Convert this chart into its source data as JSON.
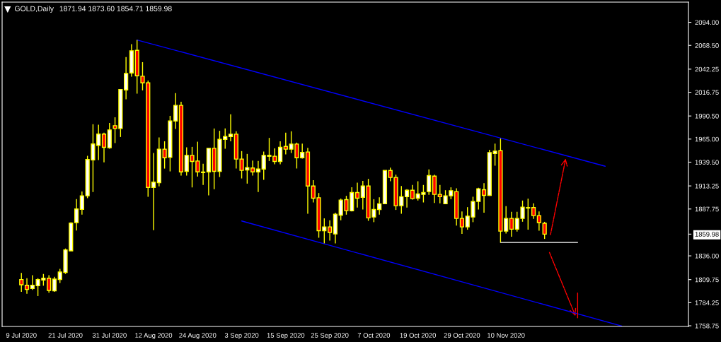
{
  "chart_data": {
    "type": "candlestick",
    "title": "GOLD,Daily",
    "subtitle": "1871.94 1873.60 1854.71 1859.98",
    "categories": [
      "9 Jul 2020",
      null,
      null,
      null,
      null,
      null,
      null,
      null,
      "21 Jul 2020",
      null,
      null,
      null,
      null,
      null,
      null,
      null,
      "31 Jul 2020",
      null,
      null,
      null,
      null,
      null,
      null,
      null,
      "12 Aug 2020",
      null,
      null,
      null,
      null,
      null,
      null,
      null,
      "24 Aug 2020",
      null,
      null,
      null,
      null,
      null,
      null,
      null,
      "3 Sep 2020",
      null,
      null,
      null,
      null,
      null,
      null,
      null,
      "15 Sep 2020",
      null,
      null,
      null,
      null,
      null,
      null,
      null,
      "25 Sep 2020",
      null,
      null,
      null,
      null,
      null,
      null,
      null,
      "7 Oct 2020",
      null,
      null,
      null,
      null,
      null,
      null,
      null,
      "19 Oct 2020",
      null,
      null,
      null,
      null,
      null,
      null,
      null,
      "29 Oct 2020",
      null,
      null,
      null,
      null,
      null,
      null,
      null,
      "10 Nov 2020",
      null,
      null,
      null,
      null,
      null,
      null,
      null,
      null,
      null,
      null,
      null,
      null,
      null,
      null,
      null,
      null,
      null,
      null,
      null,
      null,
      null,
      null,
      null,
      null,
      null,
      null,
      null,
      null,
      null,
      null,
      null,
      null,
      null
    ],
    "ylim": [
      1758.0,
      2116.3
    ],
    "yticks": [
      {
        "value": 1758.75,
        "label": "1758.75"
      },
      {
        "value": 1784.25,
        "label": "1784.25"
      },
      {
        "value": 1809.75,
        "label": "1809.75"
      },
      {
        "value": 1836.0,
        "label": "1836.00"
      },
      {
        "value": 1859.98,
        "label": "1859.98"
      },
      {
        "value": 1887.75,
        "label": "1887.75"
      },
      {
        "value": 1913.25,
        "label": "1913.25"
      },
      {
        "value": 1939.5,
        "label": "1939.50"
      },
      {
        "value": 1965.0,
        "label": "1965.00"
      },
      {
        "value": 1990.5,
        "label": "1990.50"
      },
      {
        "value": 2016.75,
        "label": "2016.75"
      },
      {
        "value": 2042.25,
        "label": "2042.25"
      },
      {
        "value": 2068.5,
        "label": "2068.50"
      },
      {
        "value": 2094.0,
        "label": "2094.00"
      }
    ],
    "grid": false,
    "series": [
      {
        "color": "#ffff00",
        "colors": [
          "#ff0000",
          "#ff0000",
          "#ffffff",
          "#ffffff",
          "#ffffff",
          "#ff0000",
          "#ffffff",
          "#ffffff",
          "#ffffff",
          "#ffffff",
          "#ffffff",
          "#ffffff",
          "#ffffff",
          "#ffffff",
          "#ffffff",
          "#ff0000",
          "#ffffff",
          "#ff0000",
          "#ffffff",
          "#ffffff",
          "#ffffff",
          "#ff0000",
          "#ff0000",
          "#ff0000",
          "#ffffff",
          "#ffffff",
          "#ff0000",
          "#ffffff",
          "#ffffff",
          "#ff0000",
          "#ffffff",
          "#ff0000",
          "#ff0000",
          "#ffffff",
          "#ffffff",
          "#ff0000",
          "#ffffff",
          "#ffffff",
          "#ffffff",
          "#ff0000",
          "#ff0000",
          "#ffffff",
          "#ff0000",
          "#ffffff",
          "#ffffff",
          "#ffffff",
          "#ff0000",
          "#ffffff",
          "#ff0000",
          "#ffffff",
          "#ff0000",
          "#ffffff",
          "#ff0000",
          "#ff0000",
          "#ff0000",
          "#ffffff",
          "#ff0000",
          "#ffffff",
          "#ffffff",
          "#ff0000",
          "#ffffff",
          "#ff0000",
          "#ffffff",
          "#ff0000",
          "#ffffff",
          "#ffffff",
          "#ffffff",
          "#ff0000",
          "#ff0000",
          "#ffffff",
          "#ffffff",
          "#ff0000",
          "#ffffff",
          "#ffffff",
          "#ffffff",
          "#ff0000",
          "#ff0000",
          "#ffffff",
          "#ffffff",
          "#ff0000",
          "#ff0000",
          "#ffffff",
          "#ffffff",
          "#ffffff",
          "#ff0000",
          "#ffffff",
          "#ffffff",
          "#ff0000",
          "#ffffff",
          "#ff0000",
          "#ffffff",
          "#ffffff",
          "#ffffff",
          "#ff0000",
          "#ff0000",
          "#ff0000",
          null,
          null,
          null,
          null,
          null,
          null,
          null,
          null,
          null,
          null,
          null,
          null,
          null,
          null,
          null,
          null,
          null,
          null,
          null,
          null,
          null,
          null,
          null,
          null,
          null,
          null
        ],
        "ohlc": [
          [
            1809.8,
            1817.1,
            1796.2,
            1804.1
          ],
          [
            1803.5,
            1811.3,
            1794.2,
            1798.9
          ],
          [
            1799.9,
            1814.5,
            1798.3,
            1803.5
          ],
          [
            1803.0,
            1811.3,
            1791.6,
            1809.8
          ],
          [
            1809.3,
            1816.0,
            1803.0,
            1811.3
          ],
          [
            1811.3,
            1814.5,
            1795.2,
            1797.8
          ],
          [
            1797.3,
            1812.9,
            1796.2,
            1810.3
          ],
          [
            1809.8,
            1821.7,
            1806.1,
            1818.1
          ],
          [
            1817.6,
            1844.1,
            1816.0,
            1842.6
          ],
          [
            1841.5,
            1873.2,
            1841.5,
            1872.2
          ],
          [
            1872.7,
            1898.7,
            1863.9,
            1887.8
          ],
          [
            1887.3,
            1907.0,
            1881.5,
            1902.3
          ],
          [
            1902.3,
            1946.5,
            1899.7,
            1942.4
          ],
          [
            1941.9,
            1981.4,
            1906.5,
            1959.6
          ],
          [
            1958.0,
            1980.9,
            1941.9,
            1970.5
          ],
          [
            1970.5,
            1972.0,
            1939.3,
            1955.9
          ],
          [
            1955.4,
            1982.9,
            1954.3,
            1975.1
          ],
          [
            1979.8,
            1989.1,
            1960.6,
            1976.7
          ],
          [
            1976.7,
            2020.3,
            1967.3,
            2019.8
          ],
          [
            2019.3,
            2055.7,
            2008.9,
            2037.5
          ],
          [
            2038.0,
            2069.8,
            2033.9,
            2062.5
          ],
          [
            2063.0,
            2074.5,
            2015.2,
            2034.9
          ],
          [
            2034.4,
            2050.0,
            2018.8,
            2027.1
          ],
          [
            2027.1,
            2029.7,
            1901.2,
            1911.6
          ],
          [
            1911.6,
            1949.6,
            1864.3,
            1917.4
          ],
          [
            1916.9,
            1966.8,
            1912.7,
            1953.8
          ],
          [
            1953.8,
            1962.6,
            1932.4,
            1944.4
          ],
          [
            1944.9,
            1990.7,
            1929.3,
            1985.0
          ],
          [
            1985.0,
            2015.7,
            1976.2,
            2002.2
          ],
          [
            2002.2,
            2006.3,
            1924.7,
            1928.8
          ],
          [
            1929.3,
            1955.9,
            1924.7,
            1947.0
          ],
          [
            1947.0,
            1956.4,
            1911.6,
            1940.3
          ],
          [
            1940.8,
            1962.1,
            1923.6,
            1928.8
          ],
          [
            1928.0,
            1937.7,
            1914.3,
            1928.6
          ],
          [
            1928.8,
            1954.8,
            1902.8,
            1954.8
          ],
          [
            1954.8,
            1976.7,
            1909.6,
            1929.3
          ],
          [
            1929.3,
            1974.1,
            1923.1,
            1964.7
          ],
          [
            1964.7,
            1976.7,
            1954.3,
            1967.8
          ],
          [
            1967.8,
            1992.3,
            1962.6,
            1970.4
          ],
          [
            1970.4,
            1973.6,
            1932.5,
            1942.9
          ],
          [
            1942.9,
            1951.7,
            1921.5,
            1930.4
          ],
          [
            1930.9,
            1948.6,
            1915.8,
            1933.5
          ],
          [
            1933.0,
            1941.3,
            1924.7,
            1928.8
          ],
          [
            1928.8,
            1940.8,
            1906.5,
            1931.9
          ],
          [
            1931.9,
            1951.2,
            1920.0,
            1947.0
          ],
          [
            1946.0,
            1966.3,
            1940.8,
            1947.0
          ],
          [
            1946.0,
            1954.8,
            1937.2,
            1940.3
          ],
          [
            1940.3,
            1962.6,
            1937.2,
            1955.9
          ],
          [
            1956.9,
            1972.0,
            1948.1,
            1953.8
          ],
          [
            1953.8,
            1973.6,
            1949.6,
            1959.5
          ],
          [
            1959.5,
            1961.1,
            1932.5,
            1944.4
          ],
          [
            1944.4,
            1960.0,
            1943.4,
            1950.2
          ],
          [
            1950.7,
            1955.3,
            1882.6,
            1913.2
          ],
          [
            1913.2,
            1919.5,
            1895.0,
            1899.7
          ],
          [
            1900.2,
            1905.4,
            1856.0,
            1863.8
          ],
          [
            1863.8,
            1877.4,
            1849.8,
            1868.0
          ],
          [
            1868.0,
            1875.3,
            1852.9,
            1861.8
          ],
          [
            1860.2,
            1883.6,
            1849.8,
            1882.0
          ],
          [
            1881.0,
            1899.2,
            1875.3,
            1897.6
          ],
          [
            1898.1,
            1902.3,
            1881.5,
            1885.9
          ],
          [
            1885.7,
            1911.7,
            1885.1,
            1905.9
          ],
          [
            1905.9,
            1916.9,
            1889.3,
            1899.7
          ],
          [
            1900.7,
            1918.9,
            1887.2,
            1913.2
          ],
          [
            1913.2,
            1921.0,
            1874.7,
            1877.9
          ],
          [
            1878.9,
            1898.6,
            1873.2,
            1887.2
          ],
          [
            1887.2,
            1900.7,
            1881.5,
            1893.5
          ],
          [
            1893.5,
            1930.3,
            1893.5,
            1930.3
          ],
          [
            1930.3,
            1933.5,
            1918.4,
            1922.6
          ],
          [
            1922.6,
            1925.7,
            1886.7,
            1891.4
          ],
          [
            1891.4,
            1913.2,
            1882.5,
            1901.3
          ],
          [
            1901.3,
            1909.6,
            1889.3,
            1908.5
          ],
          [
            1908.5,
            1914.3,
            1898.1,
            1899.2
          ],
          [
            1899.7,
            1918.4,
            1897.1,
            1904.4
          ],
          [
            1903.9,
            1914.3,
            1895.0,
            1905.9
          ],
          [
            1907.0,
            1931.4,
            1903.3,
            1924.7
          ],
          [
            1924.1,
            1925.7,
            1894.5,
            1903.9
          ],
          [
            1903.9,
            1914.3,
            1894.0,
            1901.3
          ],
          [
            1893.5,
            1908.5,
            1893.5,
            1902.3
          ],
          [
            1902.3,
            1911.7,
            1898.6,
            1908.0
          ],
          [
            1907.0,
            1910.6,
            1869.5,
            1877.3
          ],
          [
            1877.3,
            1885.1,
            1860.2,
            1868.0
          ],
          [
            1868.0,
            1889.8,
            1864.9,
            1879.9
          ],
          [
            1878.9,
            1901.3,
            1873.2,
            1896.1
          ],
          [
            1896.1,
            1911.1,
            1887.2,
            1910.1
          ],
          [
            1909.1,
            1916.3,
            1883.6,
            1902.8
          ],
          [
            1902.8,
            1953.2,
            1902.3,
            1950.1
          ],
          [
            1949.1,
            1960.0,
            1935.6,
            1951.7
          ],
          [
            1952.2,
            1965.7,
            1850.8,
            1863.3
          ],
          [
            1863.3,
            1890.9,
            1860.7,
            1877.3
          ],
          [
            1877.3,
            1884.6,
            1857.1,
            1865.4
          ],
          [
            1865.4,
            1884.6,
            1862.8,
            1877.3
          ],
          [
            1877.3,
            1897.1,
            1873.7,
            1889.8
          ],
          [
            1888.8,
            1899.2,
            1864.9,
            1889.3
          ],
          [
            1889.3,
            1894.0,
            1876.8,
            1880.5
          ],
          [
            1880.5,
            1885.1,
            1863.8,
            1872.7
          ],
          [
            1871.94,
            1873.6,
            1854.71,
            1859.98
          ],
          null,
          null,
          null,
          null,
          null,
          null,
          null,
          null,
          null,
          null,
          null,
          null,
          null,
          null,
          null,
          null,
          null,
          null,
          null,
          null,
          null,
          null,
          null,
          null,
          null,
          null
        ]
      },
      {
        "type": "line",
        "color": "#0000ff",
        "values": [
          null,
          null,
          null,
          null,
          null,
          null,
          null,
          null,
          null,
          null,
          null,
          null,
          null,
          null,
          null,
          null,
          null,
          null,
          null,
          null,
          null,
          2074.5,
          null,
          null,
          null,
          null,
          null,
          null,
          null,
          null,
          null,
          null,
          null,
          null,
          null,
          null,
          null,
          null,
          null,
          null,
          null,
          null,
          null,
          null,
          null,
          null,
          null,
          null,
          null,
          null,
          null,
          null,
          null,
          null,
          null,
          null,
          null,
          null,
          null,
          null,
          null,
          null,
          null,
          null,
          null,
          null,
          null,
          null,
          null,
          null,
          null,
          null,
          null,
          null,
          null,
          null,
          null,
          null,
          null,
          null,
          null,
          null,
          null,
          null,
          null,
          null,
          null,
          null,
          null,
          null,
          null,
          null,
          null,
          null,
          null,
          null,
          null,
          null,
          null,
          null,
          null,
          null,
          null,
          null,
          null,
          null,
          1935.0,
          null,
          null,
          null,
          null,
          null,
          null,
          null,
          null,
          null,
          null,
          null,
          null,
          null,
          null,
          null
        ]
      },
      {
        "type": "line",
        "color": "#ffffff",
        "values": [
          null,
          null,
          null,
          null,
          null,
          null,
          null,
          null,
          null,
          null,
          null,
          null,
          null,
          null,
          null,
          null,
          null,
          null,
          null,
          null,
          null,
          null,
          null,
          null,
          null,
          null,
          null,
          null,
          null,
          null,
          null,
          null,
          null,
          null,
          null,
          null,
          null,
          null,
          null,
          null,
          null,
          null,
          null,
          null,
          null,
          null,
          null,
          null,
          null,
          null,
          null,
          null,
          null,
          null,
          null,
          null,
          null,
          null,
          null,
          null,
          null,
          null,
          null,
          null,
          null,
          null,
          null,
          null,
          null,
          null,
          null,
          null,
          null,
          null,
          null,
          null,
          null,
          null,
          null,
          null,
          null,
          null,
          null,
          null,
          null,
          null,
          null,
          1850.8,
          null,
          null,
          null,
          null,
          null,
          null,
          null,
          null,
          null,
          null,
          null,
          null,
          null,
          1850.8,
          null,
          null,
          null,
          null,
          null,
          null,
          null,
          null,
          null,
          null,
          null,
          null,
          null,
          null,
          null,
          null,
          null,
          null,
          null,
          null
        ]
      },
      {
        "type": "line",
        "color": "#0000ff",
        "values": [
          null,
          null,
          null,
          null,
          null,
          null,
          null,
          null,
          null,
          null,
          null,
          null,
          null,
          null,
          null,
          null,
          null,
          null,
          null,
          null,
          null,
          null,
          null,
          null,
          null,
          null,
          null,
          null,
          null,
          null,
          null,
          null,
          null,
          null,
          null,
          null,
          null,
          null,
          null,
          null,
          1874.5,
          null,
          null,
          null,
          null,
          null,
          null,
          null,
          null,
          null,
          null,
          null,
          null,
          null,
          null,
          null,
          null,
          null,
          null,
          null,
          null,
          null,
          null,
          null,
          null,
          null,
          null,
          null,
          null,
          null,
          null,
          null,
          null,
          null,
          null,
          null,
          null,
          null,
          null,
          null,
          null,
          null,
          null,
          null,
          null,
          null,
          null,
          null,
          null,
          null,
          null,
          null,
          null,
          null,
          null,
          null,
          null,
          null,
          null,
          null,
          null,
          null,
          null,
          null,
          null,
          null,
          null,
          null,
          null,
          1758.5,
          null,
          null,
          null,
          null,
          null,
          null,
          null,
          null,
          null,
          null,
          null,
          null
        ]
      }
    ]
  }
}
